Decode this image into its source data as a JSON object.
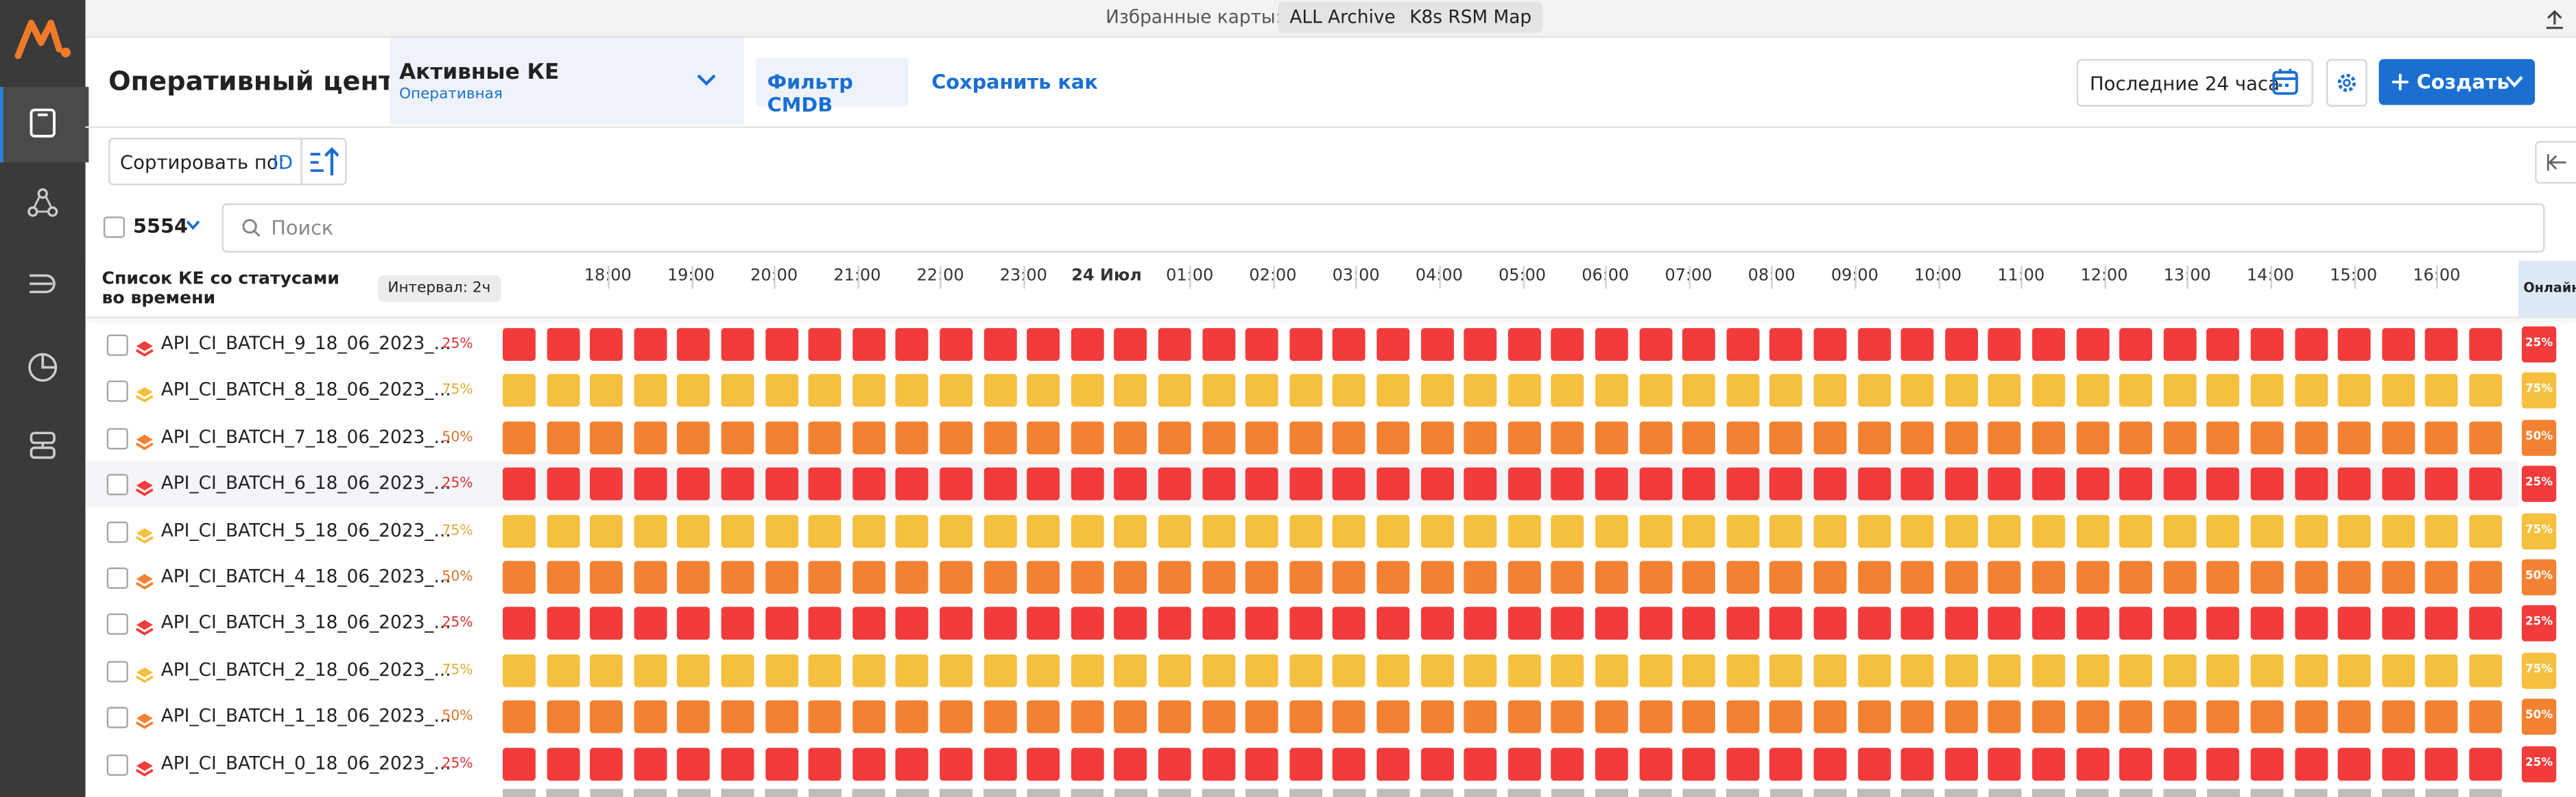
{
  "favorites": {
    "label": "Избранные карты:",
    "items": [
      "ALL Archive",
      "K8s RSM Map"
    ]
  },
  "header": {
    "title": "Оперативный центр",
    "view": {
      "name": "Активные КЕ",
      "subtitle": "Оперативная"
    },
    "filter": "Фильтр CMDB",
    "save": "Сохранить как",
    "period": "Последние 24 часа",
    "create": "Создать"
  },
  "toolbar": {
    "sort_label": "Сортировать по:",
    "sort_field": "ID",
    "count": "5554",
    "search_placeholder": "Поиск"
  },
  "table": {
    "title": "Список КЕ со статусами во времени",
    "interval": "Интервал: 2ч",
    "timeline": [
      "18:00",
      "19:00",
      "20:00",
      "21:00",
      "22:00",
      "23:00",
      "24 Июл",
      "01:00",
      "02:00",
      "03:00",
      "04:00",
      "05:00",
      "06:00",
      "07:00",
      "08:00",
      "09:00",
      "10:00",
      "11:00",
      "12:00",
      "13:00",
      "14:00",
      "15:00",
      "16:00"
    ],
    "online": "Онлайн",
    "rows": [
      {
        "name": "API_CI_BATCH_9_18_06_2023_...",
        "status": "25%",
        "color": "#f23b3b"
      },
      {
        "name": "API_CI_BATCH_8_18_06_2023_...",
        "status": "75%",
        "color": "#f5c03f"
      },
      {
        "name": "API_CI_BATCH_7_18_06_2023_...",
        "status": "50%",
        "color": "#f28232"
      },
      {
        "name": "API_CI_BATCH_6_18_06_2023_...",
        "status": "25%",
        "color": "#f23b3b"
      },
      {
        "name": "API_CI_BATCH_5_18_06_2023_...",
        "status": "75%",
        "color": "#f5c03f"
      },
      {
        "name": "API_CI_BATCH_4_18_06_2023_...",
        "status": "50%",
        "color": "#f28232"
      },
      {
        "name": "API_CI_BATCH_3_18_06_2023_...",
        "status": "25%",
        "color": "#f23b3b"
      },
      {
        "name": "API_CI_BATCH_2_18_06_2023_...",
        "status": "75%",
        "color": "#f5c03f"
      },
      {
        "name": "API_CI_BATCH_1_18_06_2023_...",
        "status": "50%",
        "color": "#f28232"
      },
      {
        "name": "API_CI_BATCH_0_18_06_2023_...",
        "status": "25%",
        "color": "#f23b3b"
      }
    ]
  }
}
